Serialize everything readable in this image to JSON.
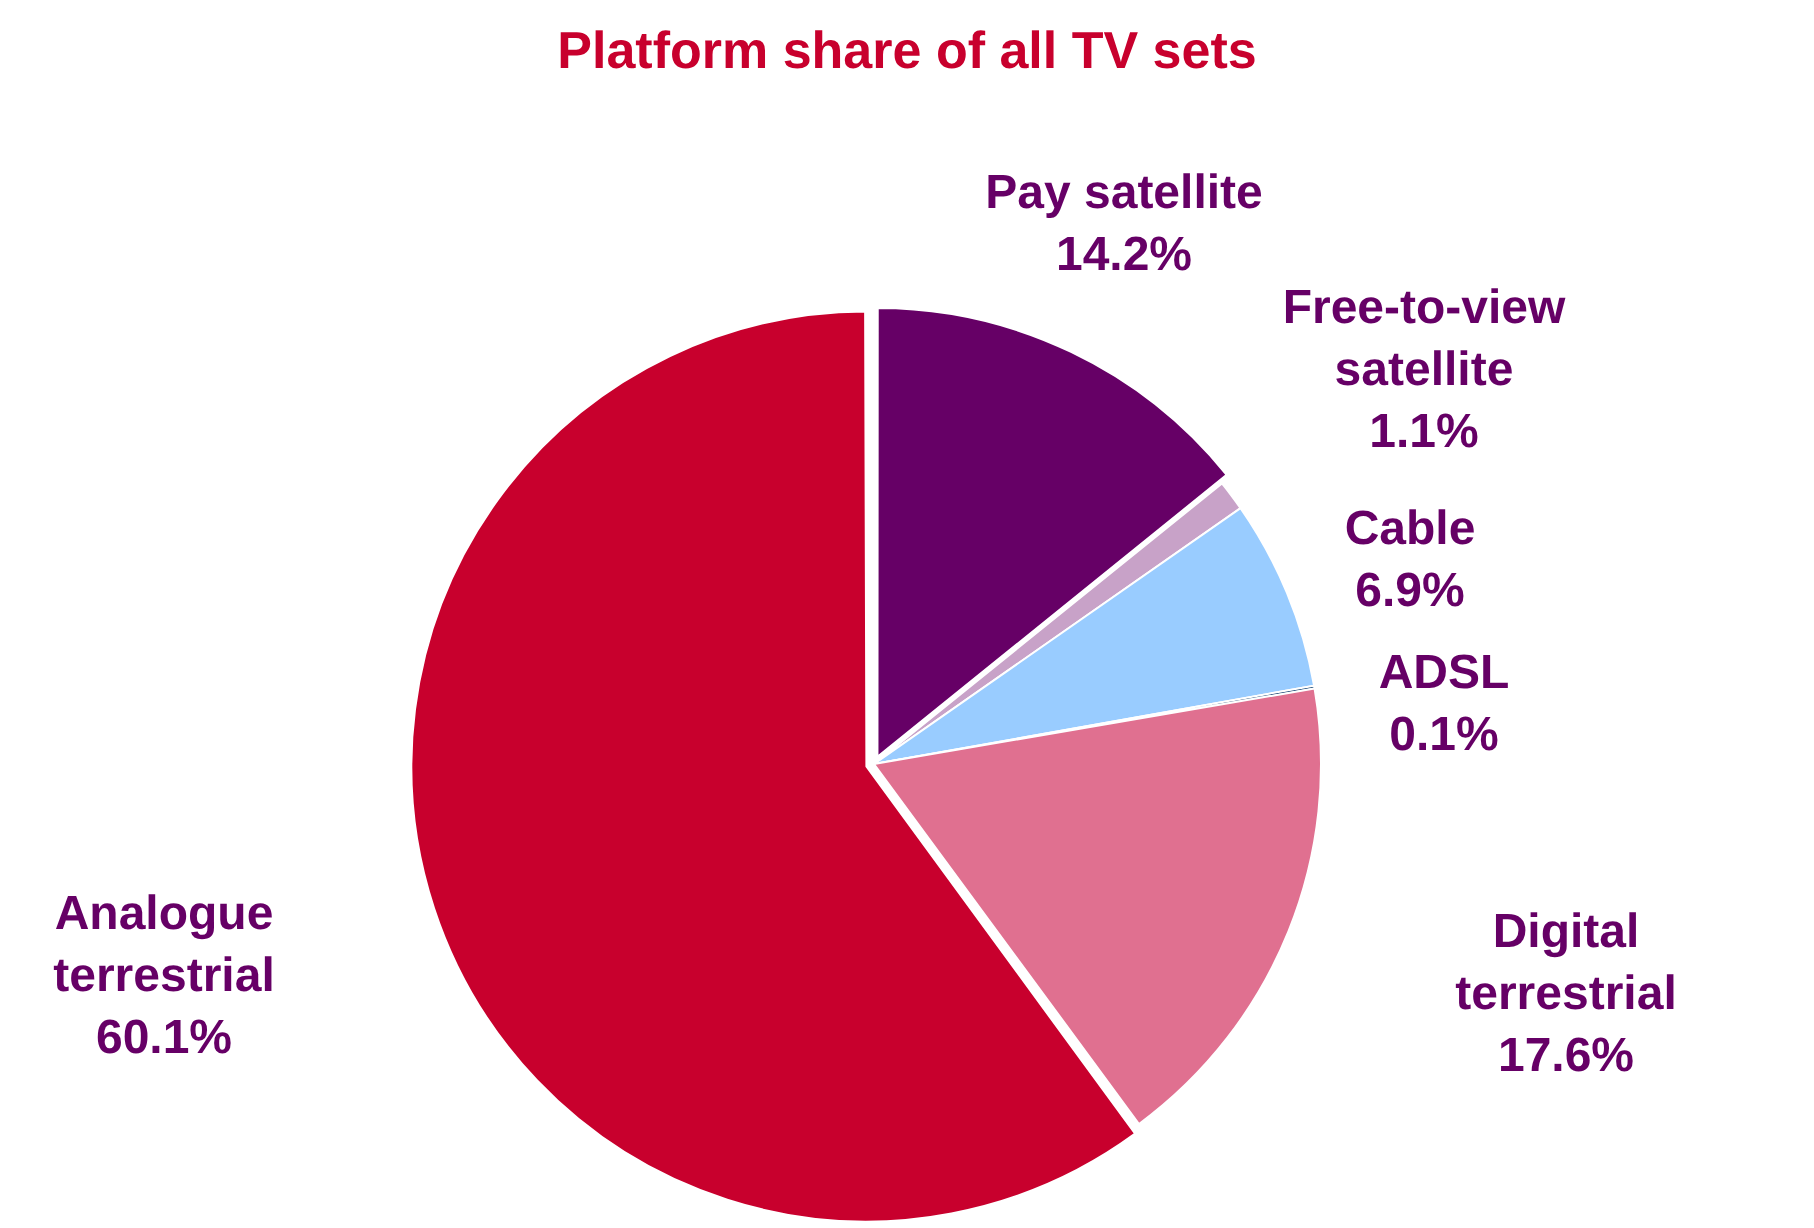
{
  "chart_data": {
    "type": "pie",
    "title": "Platform share of all TV sets",
    "categories": [
      "Pay satellite",
      "Free-to-view satellite",
      "Cable",
      "ADSL",
      "Digital terrestrial",
      "Analogue terrestrial"
    ],
    "values": [
      14.2,
      1.1,
      6.9,
      0.1,
      17.6,
      60.1
    ],
    "value_labels": [
      "14.2%",
      "1.1%",
      "6.9%",
      "0.1%",
      "17.6%",
      "60.1%"
    ],
    "colors": [
      "#660066",
      "#c8a2c8",
      "#99ccff",
      "#003366",
      "#e07090",
      "#c8002d"
    ],
    "legend": false
  }
}
